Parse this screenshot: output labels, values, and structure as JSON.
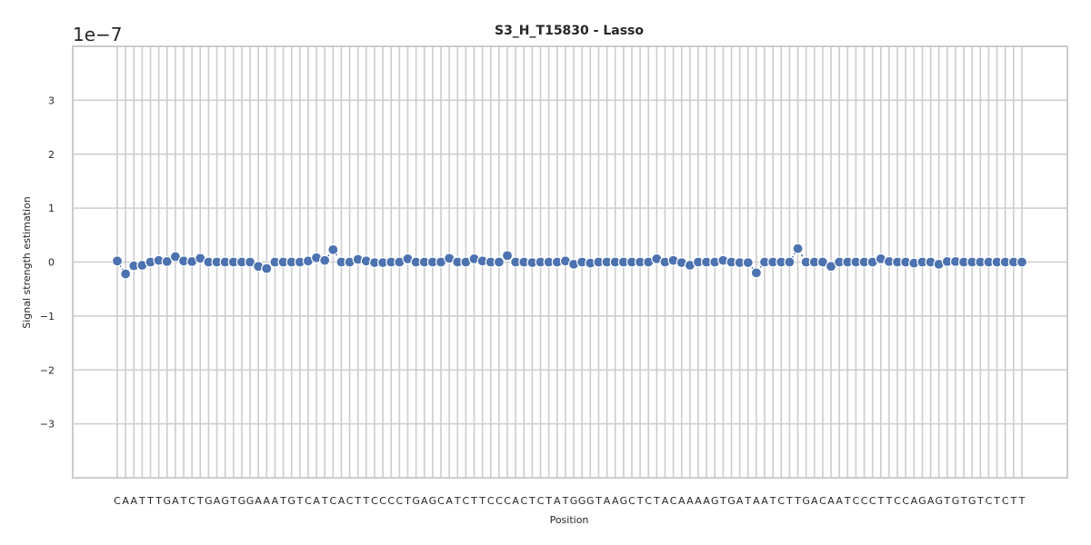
{
  "chart_data": {
    "type": "line",
    "title": "S3_H_T15830 - Lasso",
    "xlabel": "Position",
    "ylabel": "Signal strength estimation",
    "y_scale_label": "1e−7",
    "ylim": [
      -4,
      4
    ],
    "yticks": [
      -3,
      -2,
      -1,
      0,
      1,
      2,
      3
    ],
    "ytick_labels": [
      "−3",
      "−2",
      "−1",
      "0",
      "1",
      "2",
      "3"
    ],
    "grid": true,
    "x": [
      "C",
      "A",
      "A",
      "T",
      "T",
      "T",
      "G",
      "A",
      "T",
      "C",
      "T",
      "G",
      "A",
      "G",
      "T",
      "G",
      "G",
      "A",
      "A",
      "A",
      "T",
      "G",
      "T",
      "C",
      "A",
      "T",
      "C",
      "A",
      "C",
      "T",
      "T",
      "C",
      "C",
      "C",
      "C",
      "T",
      "G",
      "A",
      "G",
      "C",
      "A",
      "T",
      "C",
      "T",
      "T",
      "C",
      "C",
      "C",
      "A",
      "C",
      "T",
      "C",
      "T",
      "A",
      "T",
      "G",
      "G",
      "G",
      "T",
      "A",
      "A",
      "G",
      "C",
      "T",
      "C",
      "T",
      "A",
      "C",
      "A",
      "A",
      "A",
      "A",
      "G",
      "T",
      "G",
      "A",
      "T",
      "A",
      "A",
      "T",
      "C",
      "T",
      "T",
      "G",
      "A",
      "C",
      "A",
      "A",
      "T",
      "C",
      "C",
      "C",
      "T",
      "T",
      "C",
      "C",
      "A",
      "G",
      "A",
      "G",
      "T",
      "G",
      "T",
      "G",
      "T",
      "C",
      "T",
      "C",
      "T",
      "T"
    ],
    "series": [
      {
        "values": [
          0.02,
          -0.22,
          -0.07,
          -0.06,
          0.0,
          0.03,
          0.01,
          0.1,
          0.02,
          0.01,
          0.07,
          0.0,
          0.0,
          0.0,
          0.0,
          0.0,
          0.0,
          -0.08,
          -0.12,
          0.0,
          0.0,
          0.0,
          0.0,
          0.02,
          0.08,
          0.03,
          0.23,
          0.0,
          0.0,
          0.05,
          0.02,
          -0.01,
          -0.01,
          0.0,
          0.0,
          0.06,
          0.0,
          0.0,
          0.0,
          0.0,
          0.07,
          0.0,
          0.0,
          0.06,
          0.02,
          0.0,
          0.0,
          0.12,
          0.0,
          0.0,
          -0.01,
          0.0,
          0.0,
          0.0,
          0.02,
          -0.04,
          0.0,
          -0.02,
          0.0,
          0.0,
          0.0,
          0.0,
          0.0,
          0.0,
          0.0,
          0.06,
          0.0,
          0.03,
          -0.01,
          -0.06,
          0.0,
          0.0,
          0.0,
          0.03,
          0.0,
          -0.01,
          -0.01,
          -0.2,
          0.0,
          0.0,
          0.0,
          0.0,
          0.25,
          0.0,
          0.0,
          0.0,
          -0.08,
          0.0,
          0.0,
          0.0,
          0.0,
          0.0,
          0.06,
          0.01,
          0.0,
          0.0,
          -0.02,
          0.0,
          0.0,
          -0.04,
          0.01,
          0.01,
          0.0,
          0.0,
          0.0,
          0.0,
          0.0,
          0.0,
          0.0,
          0.0
        ]
      }
    ]
  }
}
